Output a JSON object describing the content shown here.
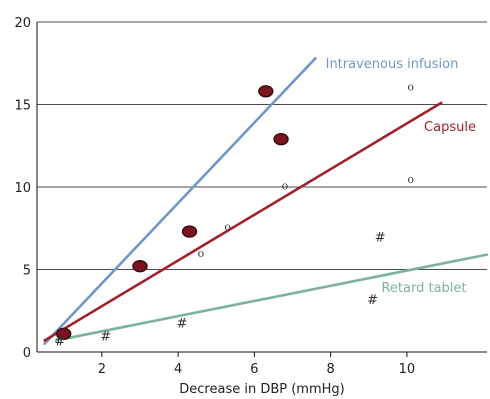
{
  "chart_data": {
    "type": "scatter",
    "xlabel": "Decrease in DBP (mmHg)",
    "ylabel": "",
    "xlim": [
      0.3,
      12.1
    ],
    "ylim": [
      0,
      20
    ],
    "x_ticks": [
      2,
      4,
      6,
      8,
      10
    ],
    "y_ticks": [
      0,
      5,
      10,
      15,
      20
    ],
    "grid": "horizontal",
    "series": [
      {
        "name": "Intravenous infusion",
        "color": "#6f97c8",
        "marker": "filled-dot",
        "points": [
          [
            1.0,
            1.1
          ],
          [
            3.0,
            5.2
          ],
          [
            4.3,
            7.3
          ],
          [
            6.3,
            15.8
          ],
          [
            6.7,
            12.9
          ]
        ],
        "fit_line": [
          [
            0.5,
            0.5
          ],
          [
            7.6,
            17.8
          ]
        ]
      },
      {
        "name": "Capsule",
        "color": "#a0222e",
        "marker": "o",
        "points": [
          [
            4.6,
            6.0
          ],
          [
            5.3,
            7.6
          ],
          [
            6.8,
            10.1
          ],
          [
            10.1,
            10.5
          ],
          [
            10.1,
            16.1
          ]
        ],
        "fit_line": [
          [
            0.5,
            0.7
          ],
          [
            10.9,
            15.1
          ]
        ]
      },
      {
        "name": "Retard tablet",
        "color": "#7ab39a",
        "marker": "#",
        "points": [
          [
            0.9,
            0.7
          ],
          [
            2.1,
            1.0
          ],
          [
            4.1,
            1.8
          ],
          [
            9.1,
            3.2
          ],
          [
            9.3,
            7.0
          ]
        ],
        "fit_line": [
          [
            0.8,
            0.7
          ],
          [
            12.1,
            5.9
          ]
        ]
      }
    ]
  }
}
